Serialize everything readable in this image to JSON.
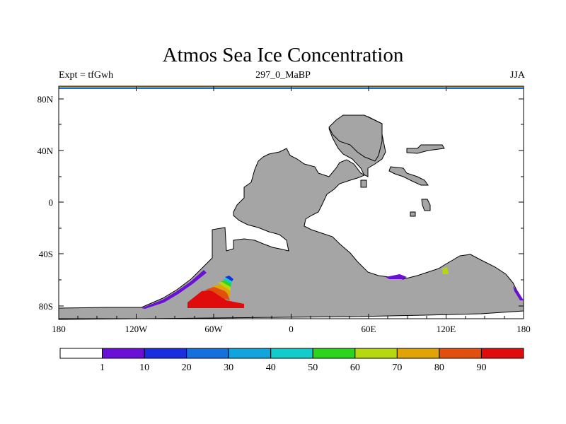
{
  "title": "Atmos Sea Ice Concentration",
  "subtitle_left": "Expt = tfGwh",
  "subtitle_center": "297_0_MaBP",
  "subtitle_right": "JJA",
  "map": {
    "lat_ticks": [
      "80N",
      "40N",
      "0",
      "40S",
      "80S"
    ],
    "lon_ticks": [
      "180",
      "120W",
      "60W",
      "0",
      "60E",
      "120E",
      "180"
    ],
    "land_color": "#a5a5a5",
    "ocean_color": "#ffffff"
  },
  "colorbar": {
    "colors": [
      "#ffffff",
      "#6a10d6",
      "#1a2ee0",
      "#1470dc",
      "#12a4dc",
      "#12cccc",
      "#2cd41c",
      "#b6d80e",
      "#e0a408",
      "#e0500c",
      "#e00c0c"
    ],
    "labels": [
      "1",
      "10",
      "20",
      "30",
      "40",
      "50",
      "60",
      "70",
      "80",
      "90"
    ]
  }
}
